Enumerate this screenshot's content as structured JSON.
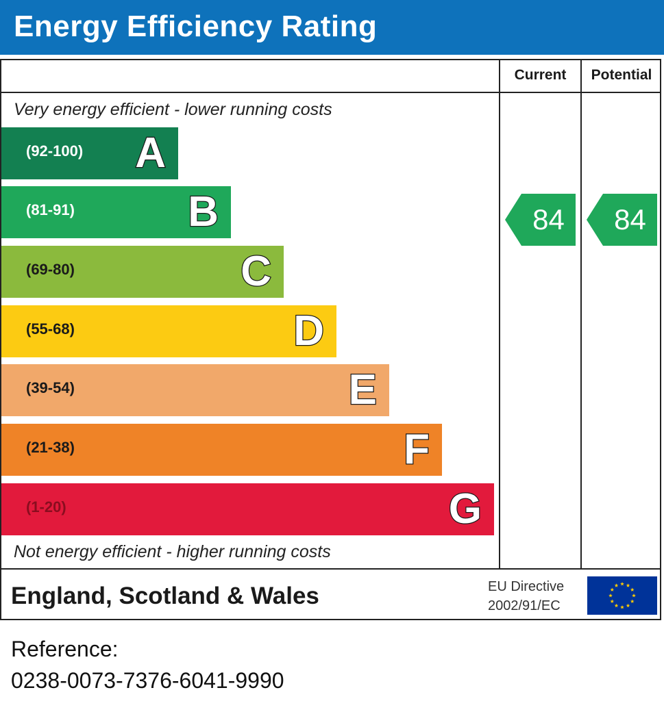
{
  "title": "Energy Efficiency Rating",
  "columns": {
    "current": "Current",
    "potential": "Potential"
  },
  "top_note": "Very energy efficient - lower running costs",
  "bottom_note": "Not energy efficient - higher running costs",
  "chart_data": {
    "type": "bar",
    "title": "Energy Efficiency Rating",
    "categories": [
      "A",
      "B",
      "C",
      "D",
      "E",
      "F",
      "G"
    ],
    "ranges": [
      "(92-100)",
      "(81-91)",
      "(69-80)",
      "(55-68)",
      "(39-54)",
      "(21-38)",
      "(1-20)"
    ],
    "colors": [
      "#138051",
      "#1fa85a",
      "#8bba3d",
      "#fccb12",
      "#f1a86a",
      "#ef8327",
      "#e21a3c"
    ],
    "current_rating": 84,
    "potential_rating": 84,
    "current_band": "B",
    "potential_band": "B",
    "rating_arrow_color": "#1fa85a"
  },
  "footer": {
    "region": "England, Scotland & Wales",
    "eu_line1": "EU Directive",
    "eu_line2": "2002/91/EC",
    "flag_icon": "eu-flag-icon",
    "flag_color": "#003399",
    "star_color": "#ffcc00"
  },
  "reference": {
    "label": "Reference:",
    "number": "0238-0073-7376-6041-9990"
  }
}
